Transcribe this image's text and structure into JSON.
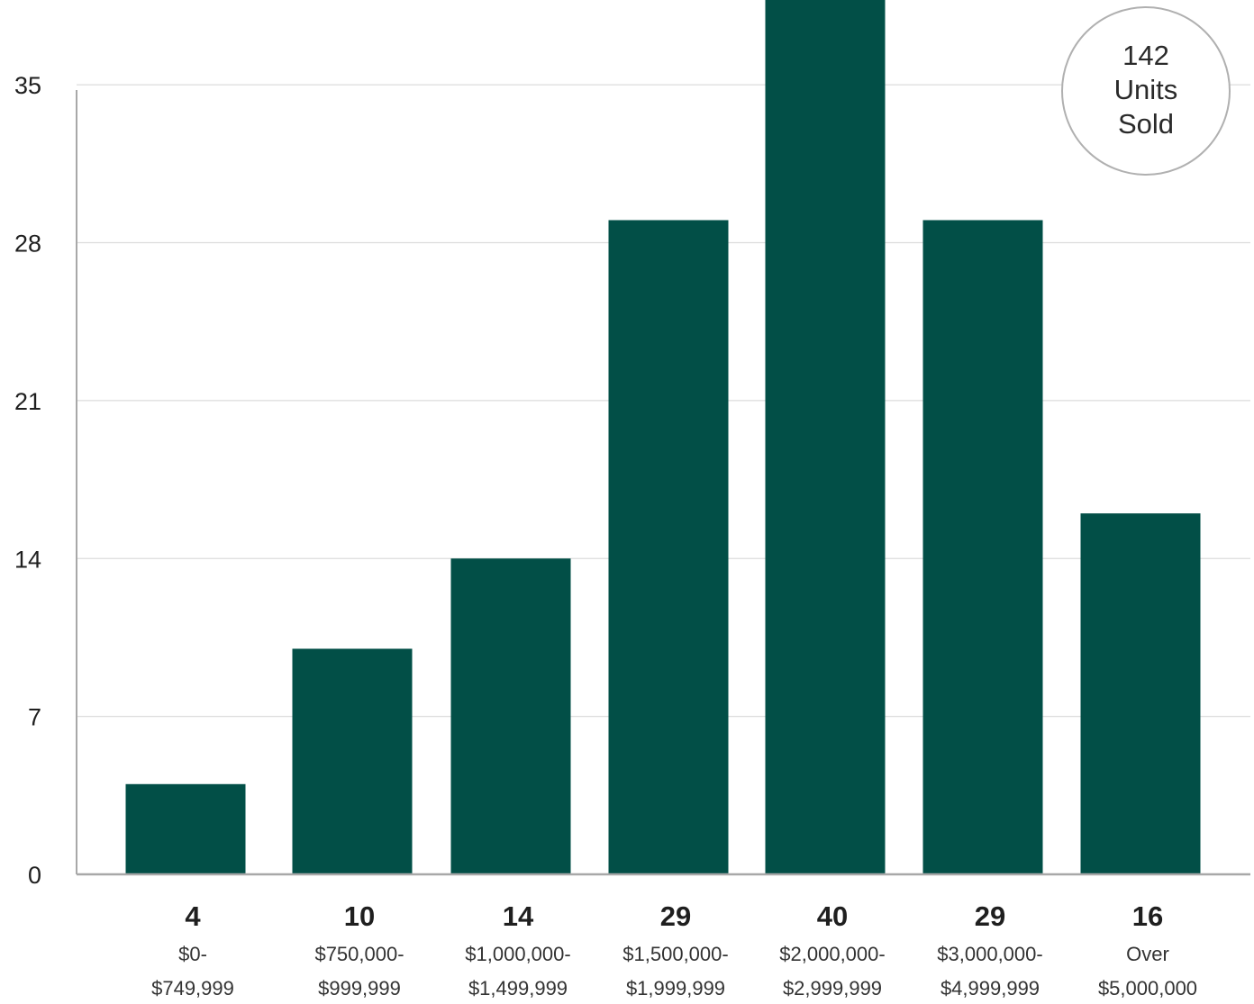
{
  "colors": {
    "bar": "#024f47",
    "grid": "#dcdcdc",
    "axis": "#a8a8a8",
    "badge_border": "#b0b0b0"
  },
  "badge": {
    "lines": [
      "142",
      "Units",
      "Sold"
    ]
  },
  "chart_data": {
    "type": "bar",
    "title": "",
    "xlabel": "",
    "ylabel": "",
    "ylim": [
      0,
      38
    ],
    "yticks": [
      0,
      7,
      14,
      21,
      28,
      35
    ],
    "grid": true,
    "categories": [
      [
        "$0-",
        "$749,999"
      ],
      [
        "$750,000-",
        "$999,999"
      ],
      [
        "$1,000,000-",
        "$1,499,999"
      ],
      [
        "$1,500,000-",
        "$1,999,999"
      ],
      [
        "$2,000,000-",
        "$2,999,999"
      ],
      [
        "$3,000,000-",
        "$4,999,999"
      ],
      [
        "Over",
        "$5,000,000"
      ]
    ],
    "values": [
      4,
      10,
      14,
      29,
      40,
      29,
      16
    ],
    "value_labels": [
      "4",
      "10",
      "14",
      "29",
      "40",
      "29",
      "16"
    ]
  }
}
